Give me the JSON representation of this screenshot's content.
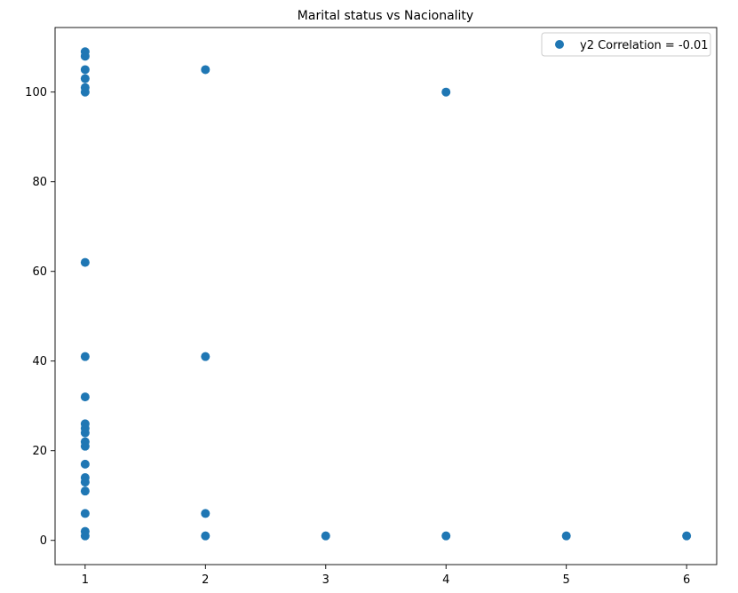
{
  "chart_data": {
    "type": "scatter",
    "title": "Marital status vs Nacionality",
    "xlabel": "",
    "ylabel": "",
    "xlim": [
      0.75,
      6.25
    ],
    "ylim": [
      -5.4,
      114.4
    ],
    "xticks": [
      1,
      2,
      3,
      4,
      5,
      6
    ],
    "yticks": [
      0,
      20,
      40,
      60,
      80,
      100
    ],
    "grid": false,
    "legend_position": "top-right",
    "series": [
      {
        "name": "y2 Correlation = -0.01",
        "color": "#1f77b4",
        "points": [
          {
            "x": 1,
            "y": 1
          },
          {
            "x": 1,
            "y": 2
          },
          {
            "x": 1,
            "y": 6
          },
          {
            "x": 1,
            "y": 11
          },
          {
            "x": 1,
            "y": 13
          },
          {
            "x": 1,
            "y": 14
          },
          {
            "x": 1,
            "y": 17
          },
          {
            "x": 1,
            "y": 21
          },
          {
            "x": 1,
            "y": 22
          },
          {
            "x": 1,
            "y": 24
          },
          {
            "x": 1,
            "y": 25
          },
          {
            "x": 1,
            "y": 26
          },
          {
            "x": 1,
            "y": 32
          },
          {
            "x": 1,
            "y": 41
          },
          {
            "x": 1,
            "y": 62
          },
          {
            "x": 1,
            "y": 100
          },
          {
            "x": 1,
            "y": 101
          },
          {
            "x": 1,
            "y": 103
          },
          {
            "x": 1,
            "y": 105
          },
          {
            "x": 1,
            "y": 108
          },
          {
            "x": 1,
            "y": 109
          },
          {
            "x": 2,
            "y": 1
          },
          {
            "x": 2,
            "y": 6
          },
          {
            "x": 2,
            "y": 41
          },
          {
            "x": 2,
            "y": 105
          },
          {
            "x": 3,
            "y": 1
          },
          {
            "x": 4,
            "y": 1
          },
          {
            "x": 4,
            "y": 100
          },
          {
            "x": 5,
            "y": 1
          },
          {
            "x": 6,
            "y": 1
          }
        ]
      }
    ]
  }
}
